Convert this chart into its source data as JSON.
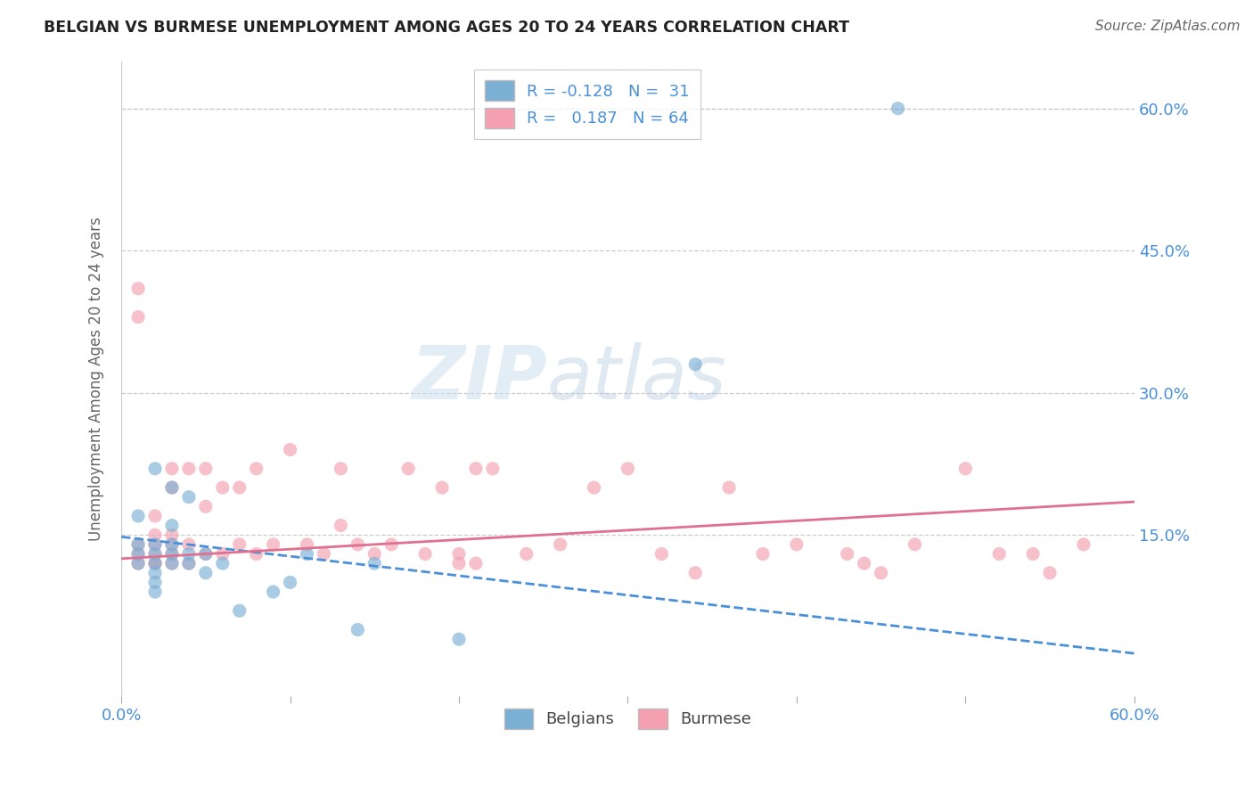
{
  "title": "BELGIAN VS BURMESE UNEMPLOYMENT AMONG AGES 20 TO 24 YEARS CORRELATION CHART",
  "source": "Source: ZipAtlas.com",
  "ylabel": "Unemployment Among Ages 20 to 24 years",
  "xlim": [
    0.0,
    0.6
  ],
  "ylim": [
    -0.02,
    0.65
  ],
  "ytick_vals": [
    0.15,
    0.3,
    0.45,
    0.6
  ],
  "ytick_labels": [
    "15.0%",
    "30.0%",
    "45.0%",
    "60.0%"
  ],
  "xtick_vals": [
    0.0,
    0.1,
    0.2,
    0.3,
    0.4,
    0.5,
    0.6
  ],
  "xtick_labels": [
    "0.0%",
    "",
    "",
    "",
    "",
    "",
    "60.0%"
  ],
  "belgian_color": "#7bafd4",
  "burmese_color": "#f4a0b0",
  "belgian_line_color": "#4a90d9",
  "burmese_line_color": "#e07090",
  "background_color": "#ffffff",
  "grid_color": "#cccccc",
  "title_color": "#222222",
  "label_color": "#666666",
  "tick_color": "#4a90d9",
  "legend_R_belgian": "-0.128",
  "legend_N_belgian": "31",
  "legend_R_burmese": "0.187",
  "legend_N_burmese": "64",
  "belgians_x": [
    0.01,
    0.01,
    0.01,
    0.01,
    0.02,
    0.02,
    0.02,
    0.02,
    0.02,
    0.02,
    0.02,
    0.03,
    0.03,
    0.03,
    0.03,
    0.03,
    0.04,
    0.04,
    0.04,
    0.05,
    0.05,
    0.06,
    0.07,
    0.09,
    0.1,
    0.11,
    0.14,
    0.15,
    0.2,
    0.34,
    0.46
  ],
  "belgians_y": [
    0.12,
    0.13,
    0.14,
    0.17,
    0.09,
    0.1,
    0.11,
    0.12,
    0.13,
    0.14,
    0.22,
    0.12,
    0.13,
    0.14,
    0.16,
    0.2,
    0.12,
    0.13,
    0.19,
    0.11,
    0.13,
    0.12,
    0.07,
    0.09,
    0.1,
    0.13,
    0.05,
    0.12,
    0.04,
    0.33,
    0.6
  ],
  "burmese_x": [
    0.01,
    0.01,
    0.01,
    0.01,
    0.01,
    0.02,
    0.02,
    0.02,
    0.02,
    0.02,
    0.02,
    0.03,
    0.03,
    0.03,
    0.03,
    0.03,
    0.03,
    0.04,
    0.04,
    0.04,
    0.05,
    0.05,
    0.05,
    0.06,
    0.06,
    0.07,
    0.07,
    0.08,
    0.08,
    0.09,
    0.1,
    0.11,
    0.12,
    0.13,
    0.13,
    0.14,
    0.15,
    0.16,
    0.17,
    0.18,
    0.19,
    0.2,
    0.21,
    0.22,
    0.24,
    0.26,
    0.28,
    0.3,
    0.32,
    0.34,
    0.36,
    0.38,
    0.4,
    0.43,
    0.45,
    0.47,
    0.5,
    0.52,
    0.54,
    0.57,
    0.2,
    0.21,
    0.55,
    0.44
  ],
  "burmese_y": [
    0.12,
    0.13,
    0.14,
    0.38,
    0.41,
    0.12,
    0.13,
    0.14,
    0.15,
    0.17,
    0.12,
    0.13,
    0.14,
    0.15,
    0.2,
    0.22,
    0.12,
    0.14,
    0.22,
    0.12,
    0.18,
    0.13,
    0.22,
    0.13,
    0.2,
    0.14,
    0.2,
    0.13,
    0.22,
    0.14,
    0.24,
    0.14,
    0.13,
    0.16,
    0.22,
    0.14,
    0.13,
    0.14,
    0.22,
    0.13,
    0.2,
    0.13,
    0.12,
    0.22,
    0.13,
    0.14,
    0.2,
    0.22,
    0.13,
    0.11,
    0.2,
    0.13,
    0.14,
    0.13,
    0.11,
    0.14,
    0.22,
    0.13,
    0.13,
    0.14,
    0.12,
    0.22,
    0.11,
    0.12
  ]
}
